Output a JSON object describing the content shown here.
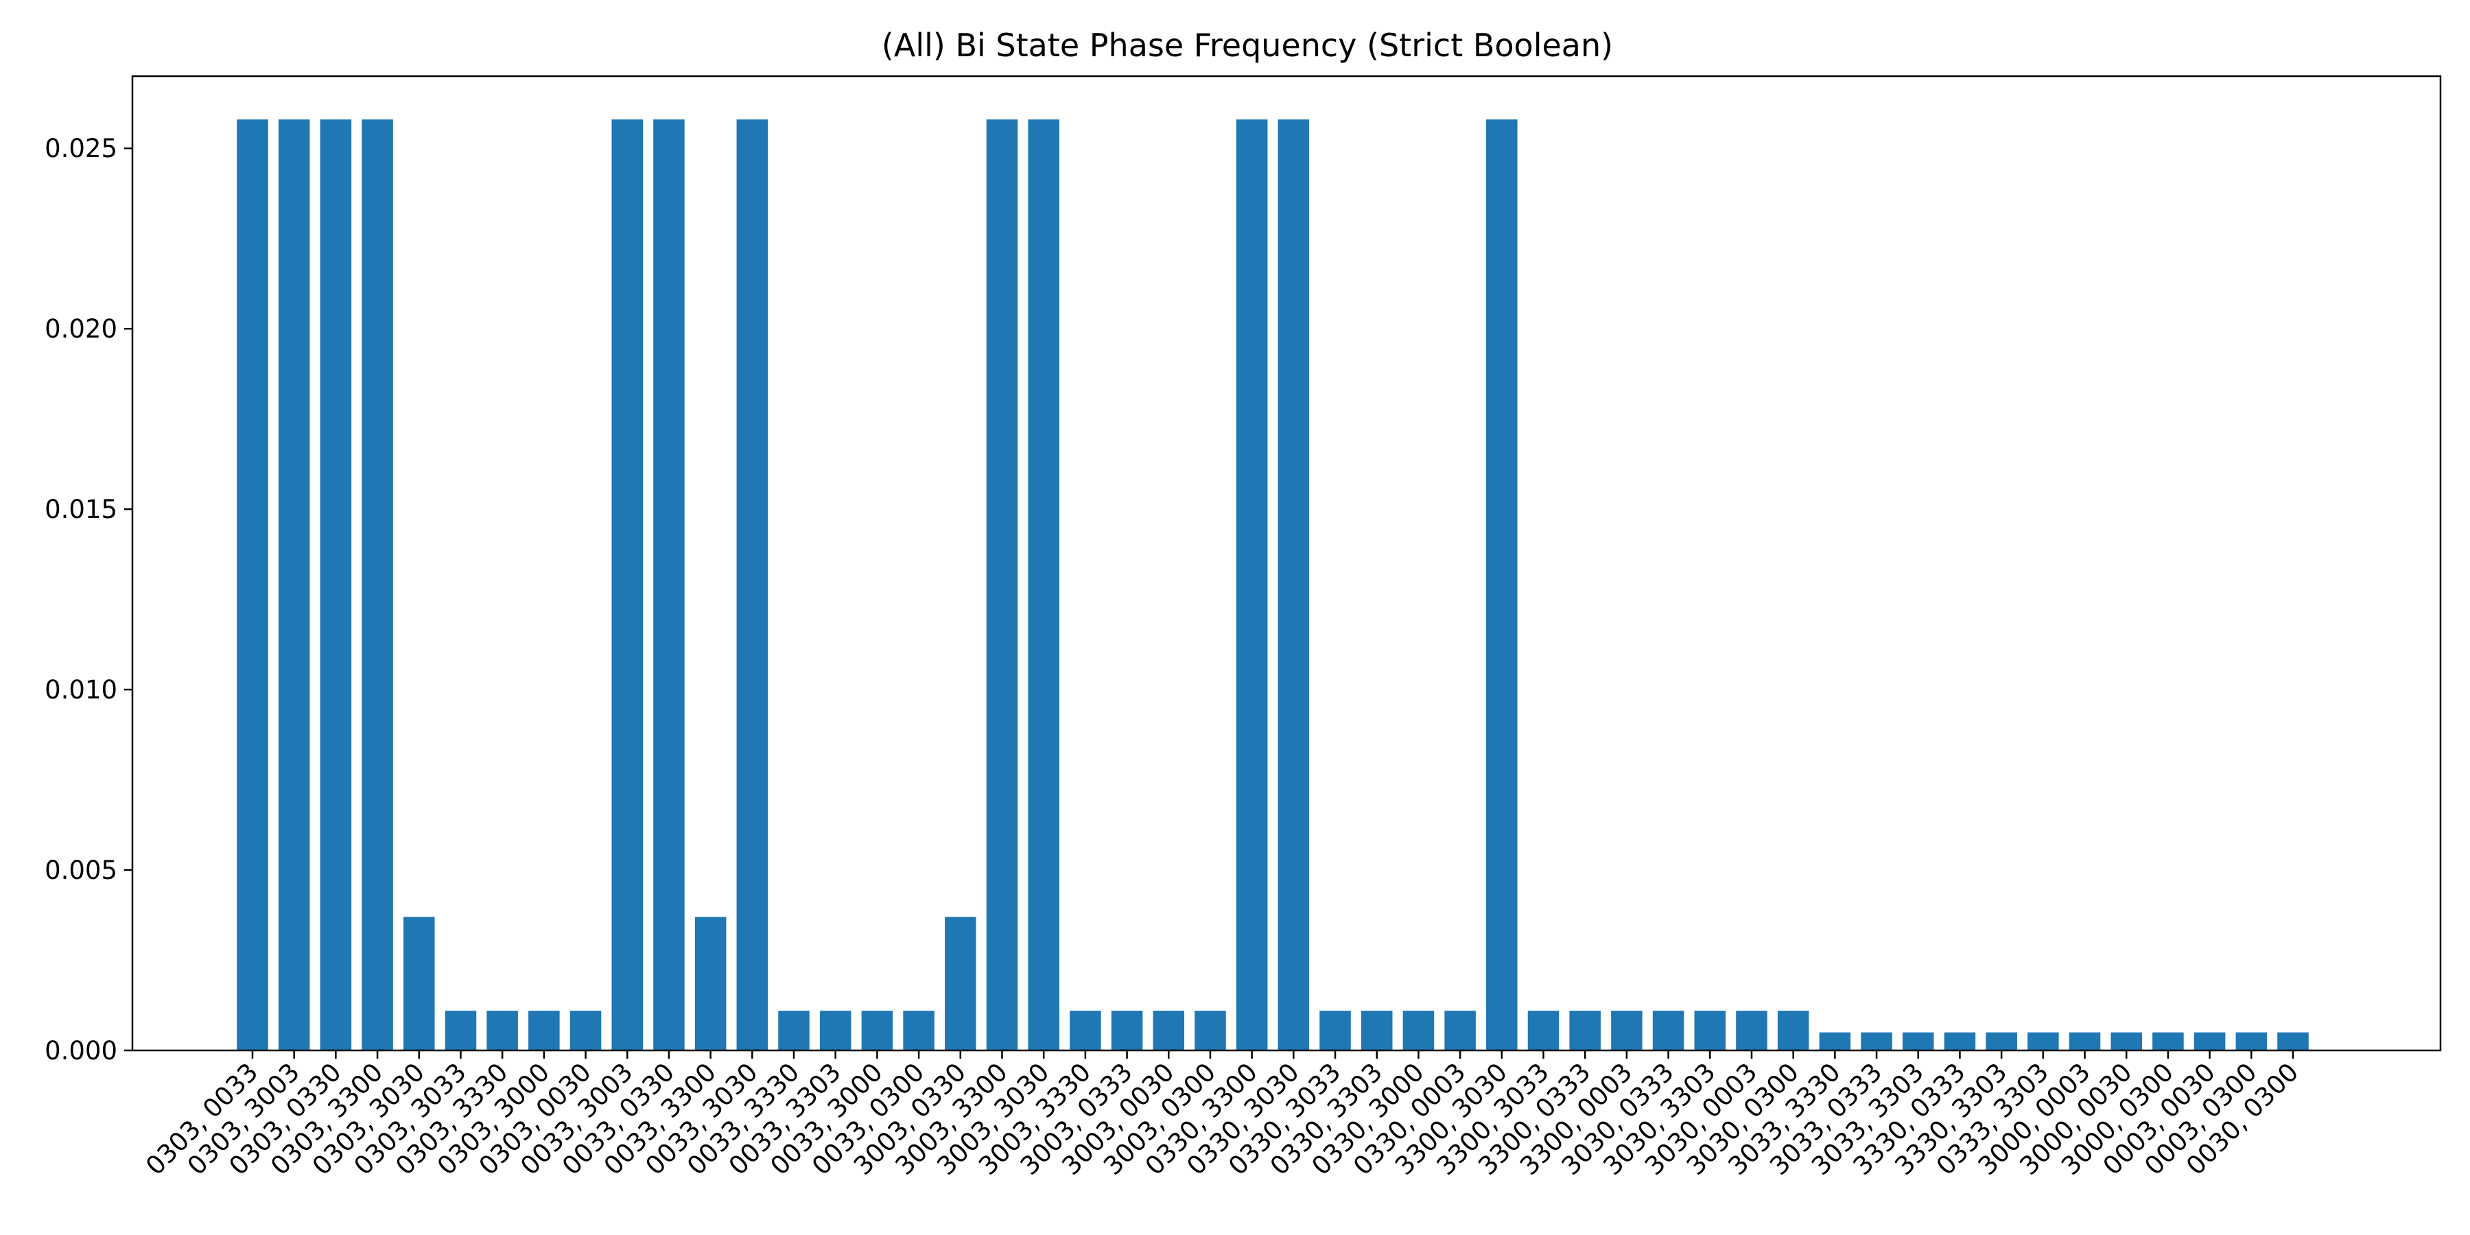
{
  "chart_data": {
    "type": "bar",
    "title": "(All) Bi State Phase Frequency (Strict Boolean)",
    "xlabel": "",
    "ylabel": "",
    "ylim": [
      0,
      0.027
    ],
    "yticks": [
      "0.000",
      "0.005",
      "0.010",
      "0.015",
      "0.020",
      "0.025"
    ],
    "ytick_values": [
      0,
      0.005,
      0.01,
      0.015,
      0.02,
      0.025
    ],
    "bar_color": "#1f77b4",
    "grid": false,
    "categories": [
      "0303, 0033",
      "0303, 3003",
      "0303, 0330",
      "0303, 3300",
      "0303, 3030",
      "0303, 3033",
      "0303, 3330",
      "0303, 3000",
      "0303, 0030",
      "0033, 3003",
      "0033, 0330",
      "0033, 3300",
      "0033, 3030",
      "0033, 3330",
      "0033, 3303",
      "0033, 3000",
      "0033, 0300",
      "3003, 0330",
      "3003, 3300",
      "3003, 3030",
      "3003, 3330",
      "3003, 0333",
      "3003, 0030",
      "3003, 0300",
      "0330, 3300",
      "0330, 3030",
      "0330, 3033",
      "0330, 3303",
      "0330, 3000",
      "0330, 0003",
      "3300, 3030",
      "3300, 3033",
      "3300, 0333",
      "3300, 0003",
      "3030, 0333",
      "3030, 3303",
      "3030, 0003",
      "3030, 0300",
      "3033, 3330",
      "3033, 0333",
      "3033, 3303",
      "3330, 0333",
      "3330, 3303",
      "0333, 3303",
      "3000, 0003",
      "3000, 0030",
      "3000, 0300",
      "0003, 0030",
      "0003, 0300",
      "0030, 0300"
    ],
    "values": [
      0.0258,
      0.0258,
      0.0258,
      0.0258,
      0.0037,
      0.0011,
      0.0011,
      0.0011,
      0.0011,
      0.0258,
      0.0258,
      0.0037,
      0.0258,
      0.0011,
      0.0011,
      0.0011,
      0.0011,
      0.0037,
      0.0258,
      0.0258,
      0.0011,
      0.0011,
      0.0011,
      0.0011,
      0.0258,
      0.0258,
      0.0011,
      0.0011,
      0.0011,
      0.0011,
      0.0258,
      0.0011,
      0.0011,
      0.0011,
      0.0011,
      0.0011,
      0.0011,
      0.0011,
      0.0005,
      0.0005,
      0.0005,
      0.0005,
      0.0005,
      0.0005,
      0.0005,
      0.0005,
      0.0005,
      0.0005,
      0.0005,
      0.0005
    ]
  }
}
